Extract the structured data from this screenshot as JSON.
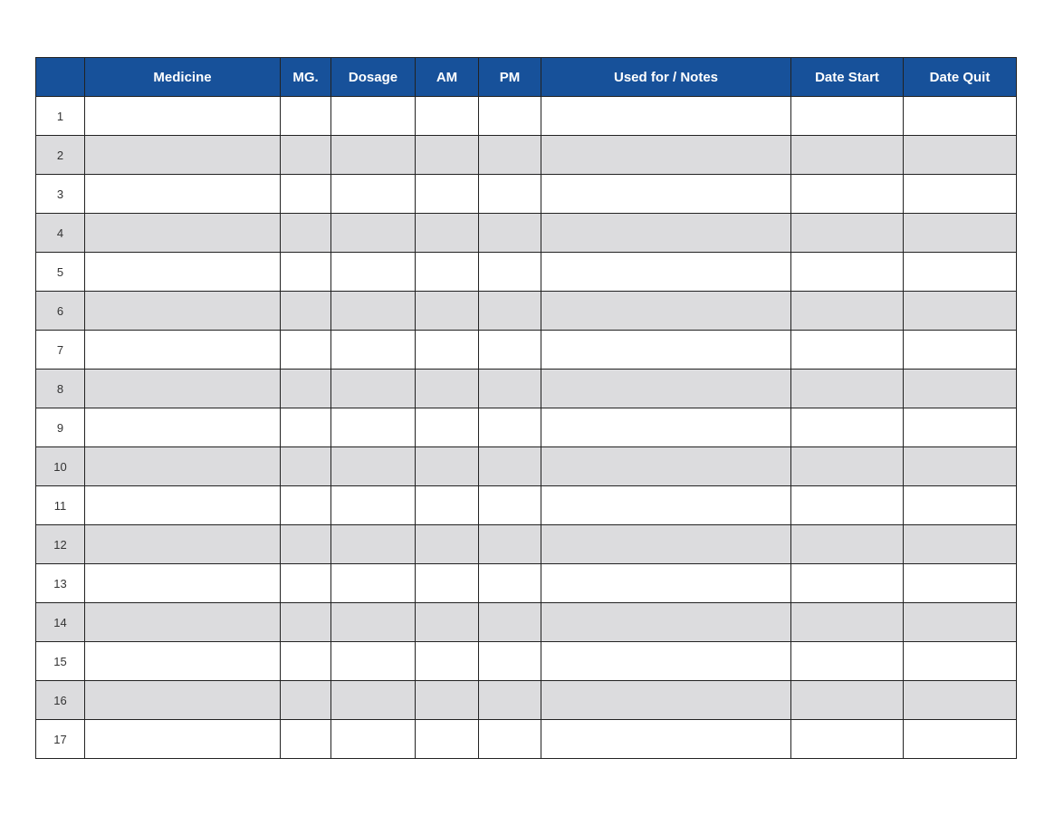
{
  "table": {
    "headers": [
      "",
      "Medicine",
      "MG.",
      "Dosage",
      "AM",
      "PM",
      "Used for / Notes",
      "Date Start",
      "Date Quit"
    ],
    "rows": [
      "1",
      "2",
      "3",
      "4",
      "5",
      "6",
      "7",
      "8",
      "9",
      "10",
      "11",
      "12",
      "13",
      "14",
      "15",
      "16",
      "17"
    ]
  },
  "colors": {
    "header_bg": "#17519a",
    "alt_row": "#dcdcde"
  }
}
